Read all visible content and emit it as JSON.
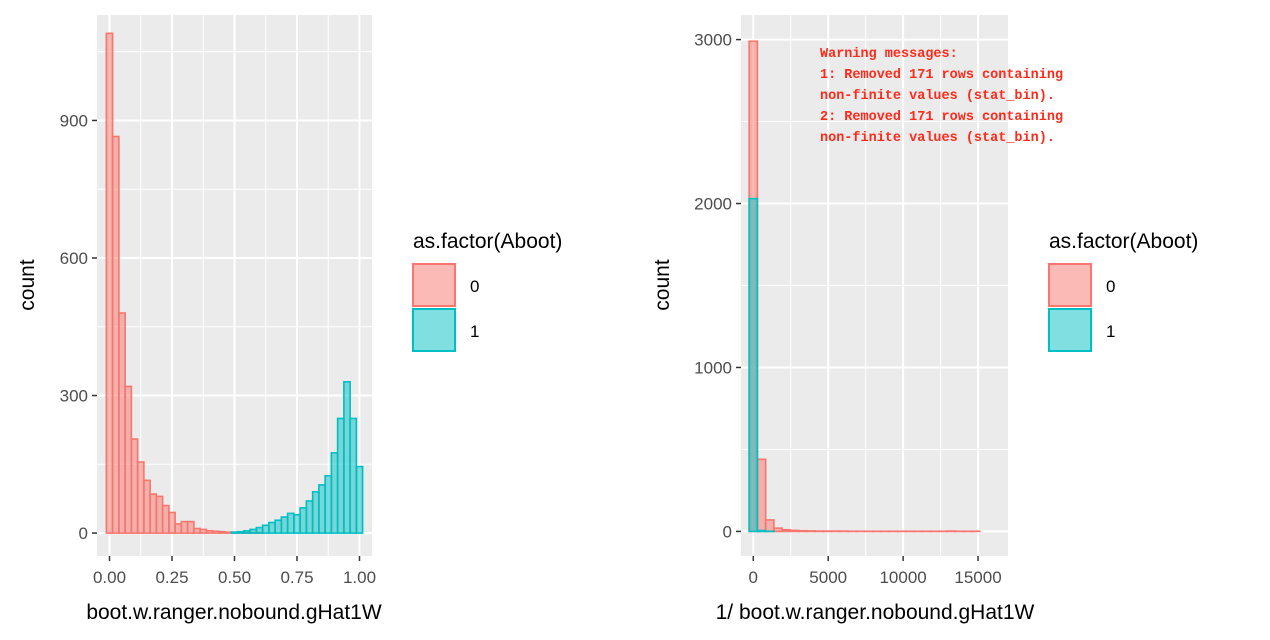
{
  "chart_data": [
    {
      "type": "histogram",
      "xlabel": "boot.w.ranger.nobound.gHat1W",
      "ylabel": "count",
      "xlim": [
        -0.05,
        1.05
      ],
      "ylim": [
        -50,
        1130
      ],
      "x_ticks": [
        0.0,
        0.25,
        0.5,
        0.75,
        1.0
      ],
      "x_tick_labels": [
        "0.00",
        "0.25",
        "0.50",
        "0.75",
        "1.00"
      ],
      "y_ticks": [
        0,
        300,
        600,
        900
      ],
      "y_tick_labels": [
        "0",
        "300",
        "600",
        "900"
      ],
      "grid": true,
      "legend": {
        "title": "as.factor(Aboot)",
        "position": "right",
        "entries": [
          {
            "label": "0",
            "color": "#F8766D"
          },
          {
            "label": "1",
            "color": "#00BFC4"
          }
        ]
      },
      "bins": {
        "start": -0.0125,
        "width": 0.025
      },
      "series": [
        {
          "name": "0",
          "color": "#F8766D",
          "values": [
            1090,
            865,
            480,
            320,
            205,
            155,
            115,
            85,
            80,
            60,
            45,
            20,
            25,
            25,
            10,
            8,
            5,
            4,
            3,
            2,
            2,
            1,
            1,
            1,
            1,
            0,
            0,
            0,
            0,
            0,
            0,
            0,
            0,
            0,
            0,
            0,
            0,
            0,
            0,
            0,
            0
          ]
        },
        {
          "name": "1",
          "color": "#00BFC4",
          "values": [
            0,
            0,
            0,
            0,
            0,
            0,
            0,
            0,
            0,
            0,
            0,
            0,
            0,
            0,
            0,
            0,
            0,
            0,
            0,
            0,
            2,
            3,
            5,
            8,
            12,
            17,
            23,
            28,
            35,
            43,
            40,
            55,
            70,
            90,
            105,
            125,
            175,
            250,
            330,
            250,
            145
          ]
        }
      ]
    },
    {
      "type": "histogram",
      "xlabel": "1/ boot.w.ranger.nobound.gHat1W",
      "ylabel": "count",
      "xlim": [
        -820,
        17000
      ],
      "ylim": [
        -150,
        3150
      ],
      "x_ticks": [
        0,
        5000,
        10000,
        15000
      ],
      "x_tick_labels": [
        "0",
        "5000",
        "10000",
        "15000"
      ],
      "y_ticks": [
        0,
        1000,
        2000,
        3000
      ],
      "y_tick_labels": [
        "0",
        "1000",
        "2000",
        "3000"
      ],
      "grid": true,
      "legend": {
        "title": "as.factor(Aboot)",
        "position": "right",
        "entries": [
          {
            "label": "0",
            "color": "#F8766D"
          },
          {
            "label": "1",
            "color": "#00BFC4"
          }
        ]
      },
      "bins": {
        "start": -275,
        "width": 550
      },
      "series": [
        {
          "name": "0",
          "color": "#F8766D",
          "values": [
            2990,
            440,
            70,
            20,
            10,
            6,
            4,
            3,
            2,
            2,
            2,
            2,
            1,
            1,
            1,
            1,
            1,
            1,
            1,
            1,
            1,
            1,
            1,
            1,
            2,
            1,
            1,
            1,
            0,
            0
          ]
        },
        {
          "name": "1",
          "color": "#00BFC4",
          "values": [
            2030,
            5,
            1,
            0,
            0,
            0,
            0,
            0,
            0,
            0,
            0,
            0,
            0,
            0,
            0,
            0,
            0,
            0,
            0,
            0,
            0,
            0,
            0,
            0,
            0,
            0,
            0,
            0,
            0,
            0
          ]
        }
      ],
      "annotation": [
        "Warning messages:",
        "1: Removed 171 rows containing",
        "non-finite values (stat_bin).",
        "2: Removed 171 rows containing",
        "non-finite values (stat_bin)."
      ]
    }
  ]
}
